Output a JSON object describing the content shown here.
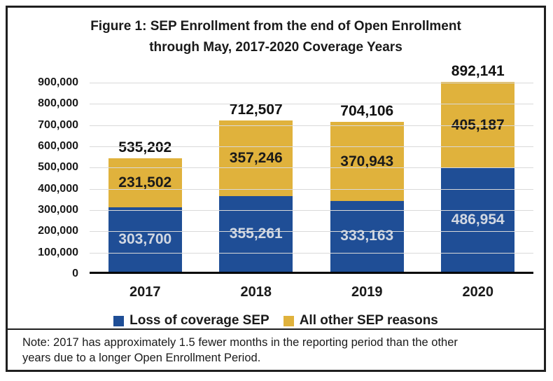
{
  "figure": {
    "title_line1": "Figure 1: SEP Enrollment from the end of Open Enrollment",
    "title_line2": "through May, 2017-2020 Coverage Years"
  },
  "chart_data": {
    "type": "bar",
    "stacked": true,
    "title": "Figure 1: SEP Enrollment from the end of Open Enrollment through May, 2017-2020 Coverage Years",
    "categories": [
      "2017",
      "2018",
      "2019",
      "2020"
    ],
    "series": [
      {
        "name": "Loss of coverage SEP",
        "color": "#1F4E96",
        "values": [
          303700,
          355261,
          333163,
          486954
        ],
        "labels": [
          "303,700",
          "355,261",
          "333,163",
          "486,954"
        ],
        "label_color": "#D2D8E2"
      },
      {
        "name": "All other SEP reasons",
        "color": "#E0B23C",
        "values": [
          231502,
          357246,
          370943,
          405187
        ],
        "labels": [
          "231,502",
          "357,246",
          "370,943",
          "405,187"
        ],
        "label_color": "#1A1A1A"
      }
    ],
    "totals": {
      "values": [
        535202,
        712507,
        704106,
        892141
      ],
      "labels": [
        "535,202",
        "712,507",
        "704,106",
        "892,141"
      ]
    },
    "y_axis": {
      "min": 0,
      "max": 900000,
      "tick_step": 100000,
      "ticks": [
        {
          "value": 0,
          "label": "0"
        },
        {
          "value": 100000,
          "label": "100,000"
        },
        {
          "value": 200000,
          "label": "200,000"
        },
        {
          "value": 300000,
          "label": "300,000"
        },
        {
          "value": 400000,
          "label": "400,000"
        },
        {
          "value": 500000,
          "label": "500,000"
        },
        {
          "value": 600000,
          "label": "600,000"
        },
        {
          "value": 700000,
          "label": "700,000"
        },
        {
          "value": 800000,
          "label": "800,000"
        },
        {
          "value": 900000,
          "label": "900,000"
        }
      ]
    },
    "grid": true,
    "gridline_color": "#D9D9D9",
    "legend_position": "bottom"
  },
  "legend": {
    "items": [
      {
        "label": "Loss of coverage SEP",
        "color": "#1F4E96"
      },
      {
        "label": "All other SEP reasons",
        "color": "#E0B23C"
      }
    ]
  },
  "note": {
    "line1": "Note: 2017 has approximately 1.5 fewer months in the reporting period than the other",
    "line2": "years due to a longer Open Enrollment Period."
  }
}
